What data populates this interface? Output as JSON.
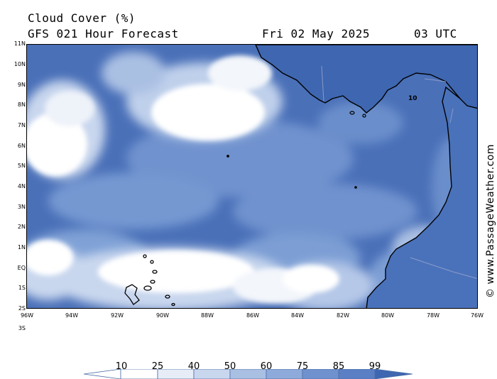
{
  "header": {
    "title": "Cloud Cover (%)",
    "model": "GFS 021 Hour Forecast",
    "date": "Fri 02 May 2025",
    "time": "03 UTC"
  },
  "credit": "© www.PassageWeather.com",
  "axes": {
    "lat_labels": [
      "11N",
      "10N",
      "9N",
      "8N",
      "7N",
      "6N",
      "5N",
      "4N",
      "3N",
      "2N",
      "1N",
      "EQ",
      "1S",
      "2S",
      "3S"
    ],
    "lon_labels": [
      "96W",
      "94W",
      "92W",
      "90W",
      "88W",
      "86W",
      "84W",
      "82W",
      "80W",
      "78W",
      "76W"
    ]
  },
  "map_label": "10",
  "colorbar": {
    "levels": [
      "10",
      "25",
      "40",
      "50",
      "60",
      "75",
      "85",
      "99"
    ],
    "colors": [
      "#ffffff",
      "#e6edf7",
      "#c9d7ee",
      "#aac0e3",
      "#8eaadb",
      "#6f92ce",
      "#5a7fc4",
      "#3f66b0"
    ]
  },
  "colors": {
    "land": "#3f66b0",
    "coast": "#000000",
    "border": "#8a9ac8"
  }
}
